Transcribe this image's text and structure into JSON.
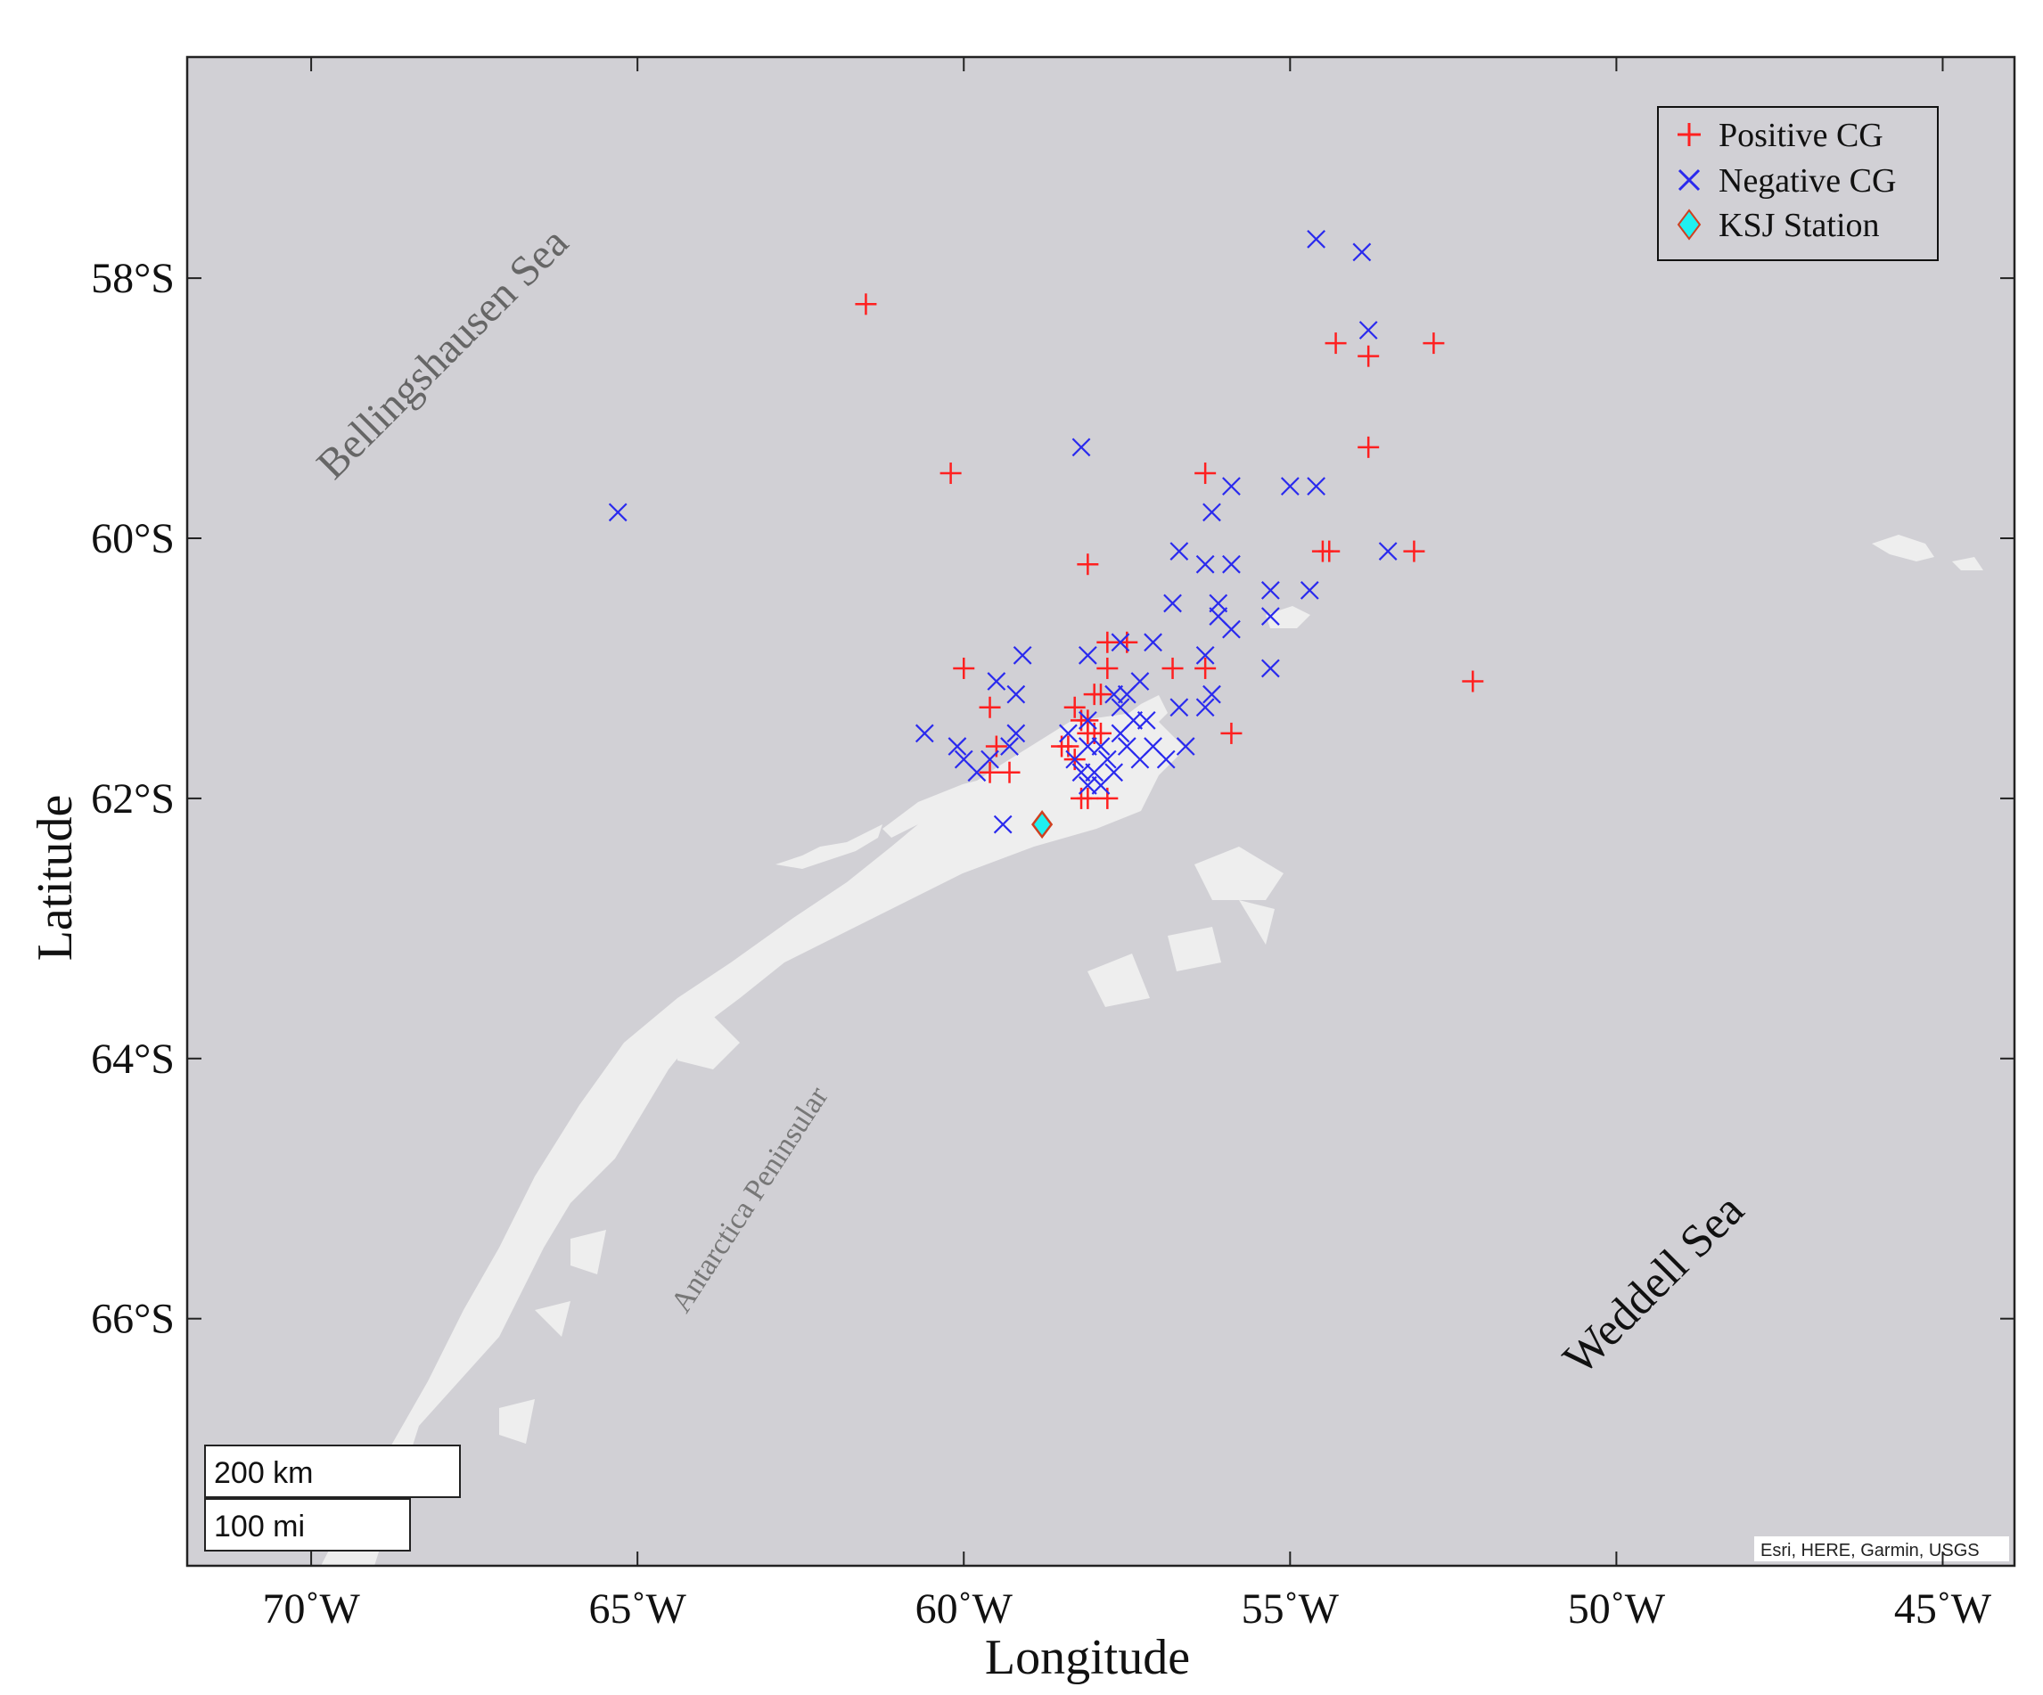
{
  "map": {
    "xlabel": "Longitude",
    "ylabel": "Latitude",
    "lon_range": [
      -71.9,
      -43.9
    ],
    "lat_range": [
      -67.9,
      -56.3
    ],
    "x_ticks": [
      {
        "value": -70,
        "label": "70˚W"
      },
      {
        "value": -65,
        "label": "65˚W"
      },
      {
        "value": -60,
        "label": "60˚W"
      },
      {
        "value": -55,
        "label": "55˚W"
      },
      {
        "value": -50,
        "label": "50˚W"
      },
      {
        "value": -45,
        "label": "45˚W"
      }
    ],
    "y_ticks": [
      {
        "value": -58,
        "label": "58°S"
      },
      {
        "value": -60,
        "label": "60°S"
      },
      {
        "value": -62,
        "label": "62°S"
      },
      {
        "value": -64,
        "label": "64°S"
      },
      {
        "value": -66,
        "label": "66°S"
      }
    ],
    "sea_labels": {
      "bellingshausen": "Bellingshausen Sea",
      "weddell": "Weddell Sea",
      "peninsula": "Antarctica Peninsular"
    },
    "scale_bar": {
      "km": "200 km",
      "mi": "100 mi"
    },
    "attribution": "Esri, HERE, Garmin, USGS",
    "colors": {
      "ocean": "#d1d0d5",
      "land": "#eeeeee",
      "positive": "#ff2020",
      "negative": "#2a2aee",
      "station_fill": "#20f0f0",
      "station_edge": "#d04020"
    }
  },
  "legend": {
    "positive": "Positive CG",
    "negative": "Negative CG",
    "station": "KSJ Station"
  },
  "chart_data": {
    "type": "scatter",
    "xlabel": "Longitude",
    "ylabel": "Latitude",
    "xlim": [
      -71.9,
      -43.9
    ],
    "ylim": [
      -67.9,
      -56.3
    ],
    "series": [
      {
        "name": "Positive CG",
        "marker": "plus",
        "color": "#ff2020",
        "points": [
          [
            -61.5,
            -58.2
          ],
          [
            -60.2,
            -59.5
          ],
          [
            -56.3,
            -59.5
          ],
          [
            -54.3,
            -58.5
          ],
          [
            -52.8,
            -58.5
          ],
          [
            -53.8,
            -58.6
          ],
          [
            -53.8,
            -59.3
          ],
          [
            -58.1,
            -60.2
          ],
          [
            -54.5,
            -60.1
          ],
          [
            -54.4,
            -60.1
          ],
          [
            -53.1,
            -60.1
          ],
          [
            -52.2,
            -61.1
          ],
          [
            -60.0,
            -61.0
          ],
          [
            -57.5,
            -60.8
          ],
          [
            -57.8,
            -60.8
          ],
          [
            -56.8,
            -61.0
          ],
          [
            -56.3,
            -61.0
          ],
          [
            -55.9,
            -61.5
          ],
          [
            -59.6,
            -61.3
          ],
          [
            -59.5,
            -61.6
          ],
          [
            -59.3,
            -61.8
          ],
          [
            -59.6,
            -61.8
          ],
          [
            -58.3,
            -61.3
          ],
          [
            -58.2,
            -61.4
          ],
          [
            -58.1,
            -61.4
          ],
          [
            -58.0,
            -61.5
          ],
          [
            -58.1,
            -61.5
          ],
          [
            -57.9,
            -61.5
          ],
          [
            -57.8,
            -61.0
          ],
          [
            -58.0,
            -61.2
          ],
          [
            -57.9,
            -61.2
          ],
          [
            -58.5,
            -61.6
          ],
          [
            -58.3,
            -61.7
          ],
          [
            -58.2,
            -62.0
          ],
          [
            -58.1,
            -62.0
          ],
          [
            -57.8,
            -62.0
          ],
          [
            -58.4,
            -61.6
          ]
        ]
      },
      {
        "name": "Negative CG",
        "marker": "x",
        "color": "#2a2aee",
        "points": [
          [
            -65.3,
            -59.8
          ],
          [
            -54.6,
            -57.7
          ],
          [
            -53.9,
            -57.8
          ],
          [
            -53.8,
            -58.4
          ],
          [
            -58.2,
            -59.3
          ],
          [
            -55.9,
            -59.6
          ],
          [
            -55.0,
            -59.6
          ],
          [
            -54.6,
            -59.6
          ],
          [
            -56.2,
            -59.8
          ],
          [
            -56.7,
            -60.1
          ],
          [
            -56.3,
            -60.2
          ],
          [
            -55.9,
            -60.2
          ],
          [
            -53.5,
            -60.1
          ],
          [
            -56.8,
            -60.5
          ],
          [
            -55.3,
            -60.4
          ],
          [
            -54.7,
            -60.4
          ],
          [
            -56.1,
            -60.5
          ],
          [
            -56.1,
            -60.6
          ],
          [
            -55.9,
            -60.7
          ],
          [
            -55.3,
            -60.6
          ],
          [
            -56.3,
            -60.9
          ],
          [
            -55.3,
            -61.0
          ],
          [
            -59.1,
            -60.9
          ],
          [
            -58.1,
            -60.9
          ],
          [
            -57.6,
            -60.8
          ],
          [
            -57.1,
            -60.8
          ],
          [
            -59.5,
            -61.1
          ],
          [
            -59.2,
            -61.2
          ],
          [
            -56.2,
            -61.2
          ],
          [
            -56.3,
            -61.3
          ],
          [
            -56.7,
            -61.3
          ],
          [
            -56.6,
            -61.6
          ],
          [
            -57.2,
            -61.4
          ],
          [
            -57.4,
            -61.4
          ],
          [
            -57.6,
            -61.3
          ],
          [
            -57.5,
            -61.2
          ],
          [
            -57.7,
            -61.2
          ],
          [
            -57.3,
            -61.1
          ],
          [
            -57.6,
            -61.5
          ],
          [
            -57.9,
            -61.6
          ],
          [
            -57.5,
            -61.6
          ],
          [
            -57.1,
            -61.6
          ],
          [
            -56.9,
            -61.7
          ],
          [
            -57.3,
            -61.7
          ],
          [
            -57.8,
            -61.7
          ],
          [
            -58.0,
            -61.8
          ],
          [
            -58.2,
            -61.8
          ],
          [
            -58.3,
            -61.7
          ],
          [
            -58.1,
            -61.6
          ],
          [
            -58.4,
            -61.5
          ],
          [
            -58.1,
            -61.4
          ],
          [
            -60.6,
            -61.5
          ],
          [
            -60.1,
            -61.6
          ],
          [
            -60.0,
            -61.7
          ],
          [
            -59.8,
            -61.8
          ],
          [
            -59.6,
            -61.7
          ],
          [
            -59.3,
            -61.6
          ],
          [
            -59.2,
            -61.5
          ],
          [
            -59.4,
            -62.2
          ],
          [
            -58.1,
            -61.9
          ],
          [
            -57.9,
            -61.9
          ],
          [
            -57.7,
            -61.8
          ]
        ]
      },
      {
        "name": "KSJ Station",
        "marker": "diamond",
        "color": "#20f0f0",
        "points": [
          [
            -58.8,
            -62.2
          ]
        ]
      }
    ]
  }
}
